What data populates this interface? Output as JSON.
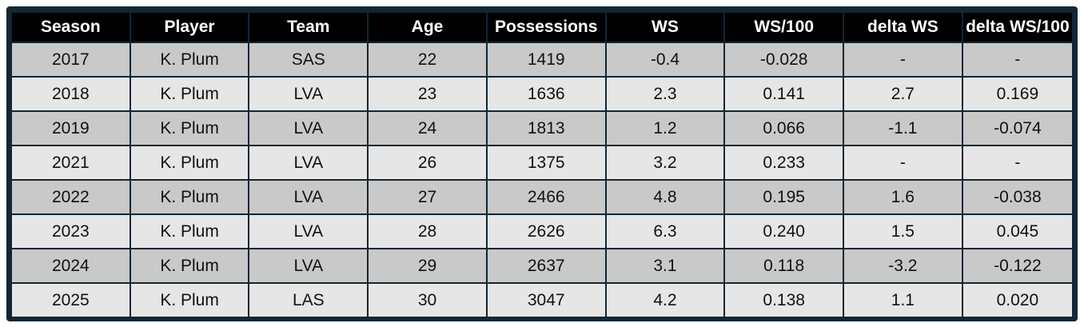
{
  "table": {
    "headers": [
      "Season",
      "Player",
      "Team",
      "Age",
      "Possessions",
      "WS",
      "WS/100",
      "delta WS",
      "delta WS/100"
    ],
    "rows": [
      [
        "2017",
        "K. Plum",
        "SAS",
        "22",
        "1419",
        "-0.4",
        "-0.028",
        "-",
        "-"
      ],
      [
        "2018",
        "K. Plum",
        "LVA",
        "23",
        "1636",
        "2.3",
        "0.141",
        "2.7",
        "0.169"
      ],
      [
        "2019",
        "K. Plum",
        "LVA",
        "24",
        "1813",
        "1.2",
        "0.066",
        "-1.1",
        "-0.074"
      ],
      [
        "2021",
        "K. Plum",
        "LVA",
        "26",
        "1375",
        "3.2",
        "0.233",
        "-",
        "-"
      ],
      [
        "2022",
        "K. Plum",
        "LVA",
        "27",
        "2466",
        "4.8",
        "0.195",
        "1.6",
        "-0.038"
      ],
      [
        "2023",
        "K. Plum",
        "LVA",
        "28",
        "2626",
        "6.3",
        "0.240",
        "1.5",
        "0.045"
      ],
      [
        "2024",
        "K. Plum",
        "LVA",
        "29",
        "2637",
        "3.1",
        "0.118",
        "-3.2",
        "-0.122"
      ],
      [
        "2025",
        "K. Plum",
        "LAS",
        "30",
        "3047",
        "4.2",
        "0.138",
        "1.1",
        "0.020"
      ]
    ]
  },
  "colors": {
    "frame": "#122633",
    "header_bg": "#000000",
    "header_text": "#ffffff",
    "row_dark": "#c9c9c9",
    "row_light": "#e6e6e6"
  }
}
